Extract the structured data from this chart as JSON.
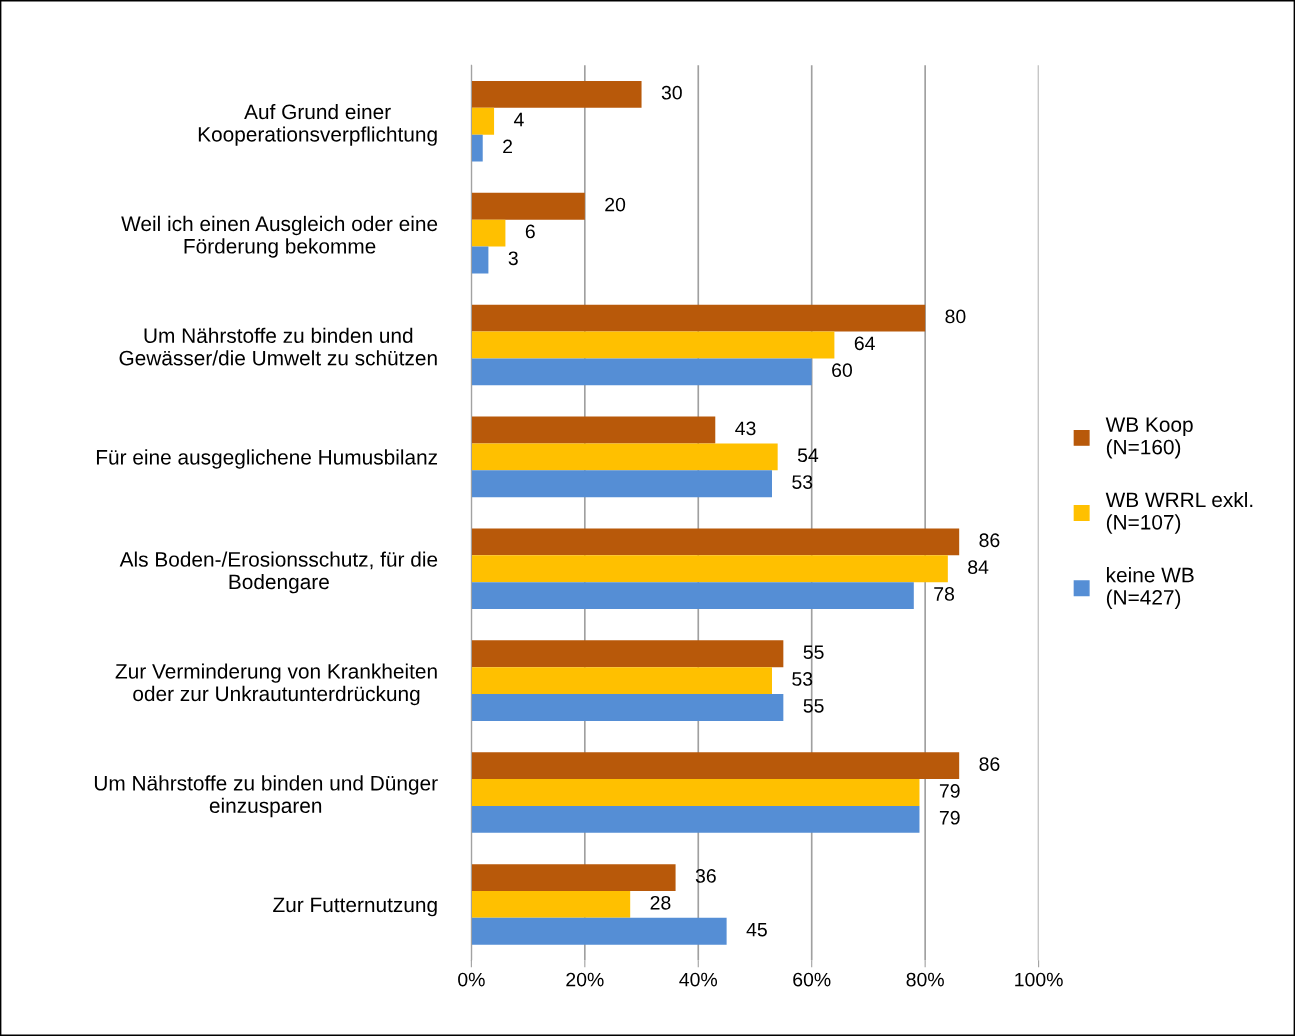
{
  "chart_data": {
    "type": "bar",
    "orientation": "horizontal",
    "categories": [
      "Auf Grund einer\nKooperationsverpflichtung",
      "Weil ich einen Ausgleich oder eine\nFörderung bekomme",
      "Um Nährstoffe zu binden und\nGewässer/die Umwelt zu schützen",
      "Für eine ausgeglichene Humusbilanz",
      "Als Boden-/Erosionsschutz, für die\nBodengare",
      "Zur Verminderung von Krankheiten\noder zur Unkrautunterdrückung",
      "Um Nährstoffe zu binden und Dünger\neinzusparen",
      "Zur Futternutzung"
    ],
    "series": [
      {
        "name": "WB Koop\n(N=160)",
        "color": "#b8590a",
        "values": [
          30,
          20,
          80,
          43,
          86,
          55,
          86,
          36
        ]
      },
      {
        "name": "WB WRRL exkl.\n(N=107)",
        "color": "#ffc000",
        "values": [
          4,
          6,
          64,
          54,
          84,
          53,
          79,
          28
        ]
      },
      {
        "name": "keine WB\n(N=427)",
        "color": "#558ed5",
        "values": [
          2,
          3,
          60,
          53,
          78,
          55,
          79,
          45
        ]
      }
    ],
    "xlim": [
      0,
      100
    ],
    "xticks": [
      {
        "value": 0,
        "label": "0%"
      },
      {
        "value": 20,
        "label": "20%"
      },
      {
        "value": 40,
        "label": "40%"
      },
      {
        "value": 60,
        "label": "60%"
      },
      {
        "value": 80,
        "label": "80%"
      },
      {
        "value": 100,
        "label": "100%"
      }
    ],
    "grid": "x",
    "legend": "right",
    "data_labels": true
  }
}
